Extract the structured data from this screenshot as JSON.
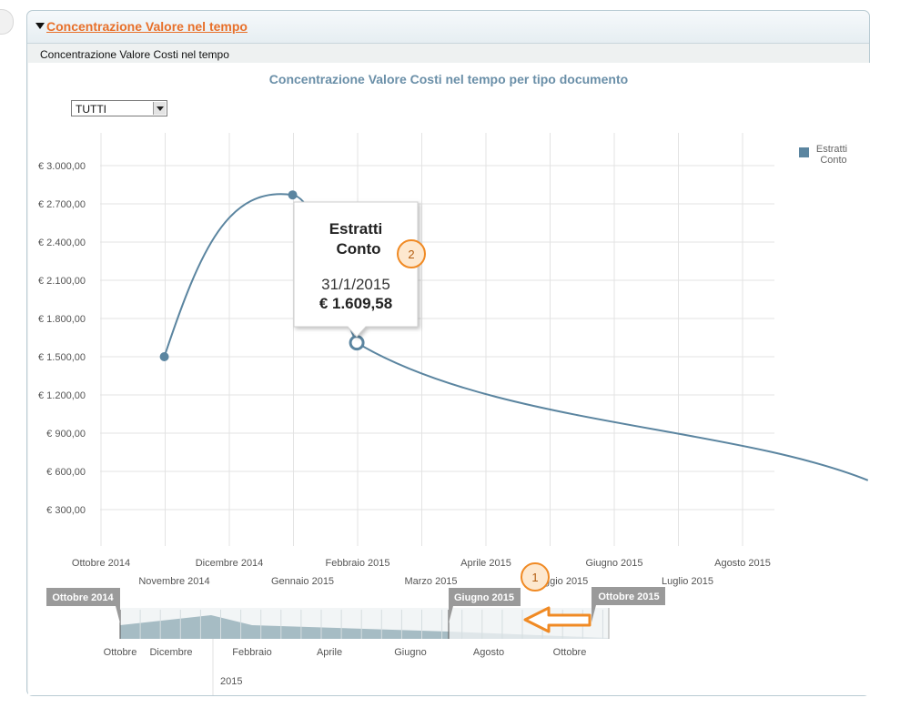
{
  "panel": {
    "title": "Concentrazione Valore nel tempo",
    "subtitle": "Concentrazione Valore Costi nel tempo"
  },
  "filter": {
    "selected": "TUTTI"
  },
  "chart_data": {
    "type": "line",
    "title": "Concentrazione Valore Costi nel tempo per tipo documento",
    "legend": {
      "position": "right",
      "entries": [
        "Estratti",
        "Conto"
      ]
    },
    "series": [
      {
        "name": "Estratti Conto",
        "color": "#5b85a0",
        "points": [
          {
            "x": "2014-10-31",
            "y": 1500
          },
          {
            "x": "2014-12-31",
            "y": 2770
          },
          {
            "x": "2015-01-31",
            "y": 1609.58
          },
          {
            "x": "2015-09-30",
            "y": 530
          }
        ]
      }
    ],
    "x_ticks_upper": [
      "Ottobre 2014",
      "Dicembre 2014",
      "Febbraio 2015",
      "Aprile 2015",
      "Giugno 2015",
      "Agosto 2015"
    ],
    "x_ticks_lower": [
      "Novembre 2014",
      "Gennaio 2015",
      "Marzo 2015",
      "Maggio 2015",
      "Luglio 2015"
    ],
    "y_ticks": [
      "€ 300,00",
      "€ 600,00",
      "€ 900,00",
      "€ 1.200,00",
      "€ 1.500,00",
      "€ 1.800,00",
      "€ 2.100,00",
      "€ 2.400,00",
      "€ 2.700,00",
      "€ 3.000,00"
    ],
    "ylim": [
      0,
      3200
    ],
    "grid": true,
    "tooltip": {
      "series_line1": "Estratti",
      "series_line2": "Conto",
      "date": "31/1/2015",
      "value": "€ 1.609,58"
    }
  },
  "navigator": {
    "range_start": "Ottobre 2014",
    "range_mid": "Giugno 2015",
    "range_end": "Ottobre 2015",
    "ticks": [
      "Ottobre",
      "Dicembre",
      "Febbraio",
      "Aprile",
      "Giugno",
      "Agosto",
      "Ottobre"
    ],
    "year_label": "2015"
  },
  "annotations": {
    "badge1": "1",
    "badge2": "2",
    "badge_color": "#f08a24"
  }
}
